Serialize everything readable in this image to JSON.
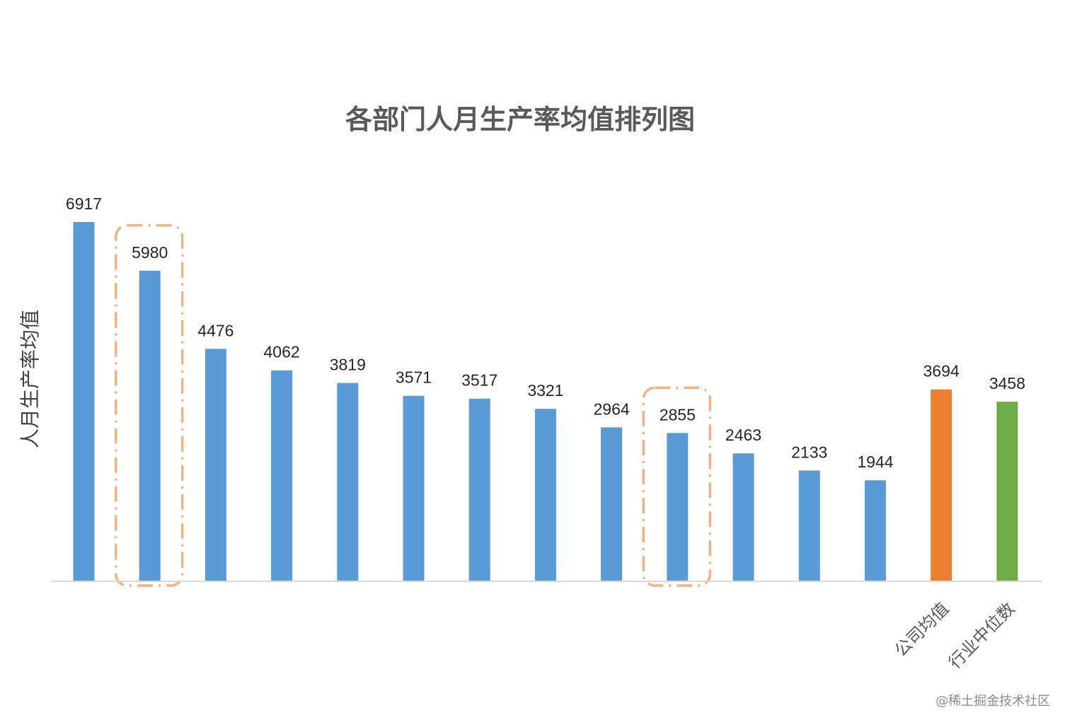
{
  "chart_data": {
    "type": "bar",
    "title": "各部门人月生产率均值排列图",
    "ylabel": "人月生产率均值",
    "xlabel": "",
    "ylim": [
      0,
      6917
    ],
    "grid": false,
    "categories": [
      "",
      "",
      "",
      "",
      "",
      "",
      "",
      "",
      "",
      "",
      "",
      "",
      "",
      "公司均值",
      "行业中位数"
    ],
    "values": [
      6917,
      5980,
      4476,
      4062,
      3819,
      3571,
      3517,
      3321,
      2964,
      2855,
      2463,
      2133,
      1944,
      3694,
      3458
    ],
    "colors": [
      "#5b9bd5",
      "#5b9bd5",
      "#5b9bd5",
      "#5b9bd5",
      "#5b9bd5",
      "#5b9bd5",
      "#5b9bd5",
      "#5b9bd5",
      "#5b9bd5",
      "#5b9bd5",
      "#5b9bd5",
      "#5b9bd5",
      "#5b9bd5",
      "#ed7d31",
      "#70ad47"
    ],
    "highlighted": [
      1,
      9
    ],
    "highlight_color": "#f4b183",
    "data_labels": true
  },
  "watermark": "@稀土掘金技术社区"
}
